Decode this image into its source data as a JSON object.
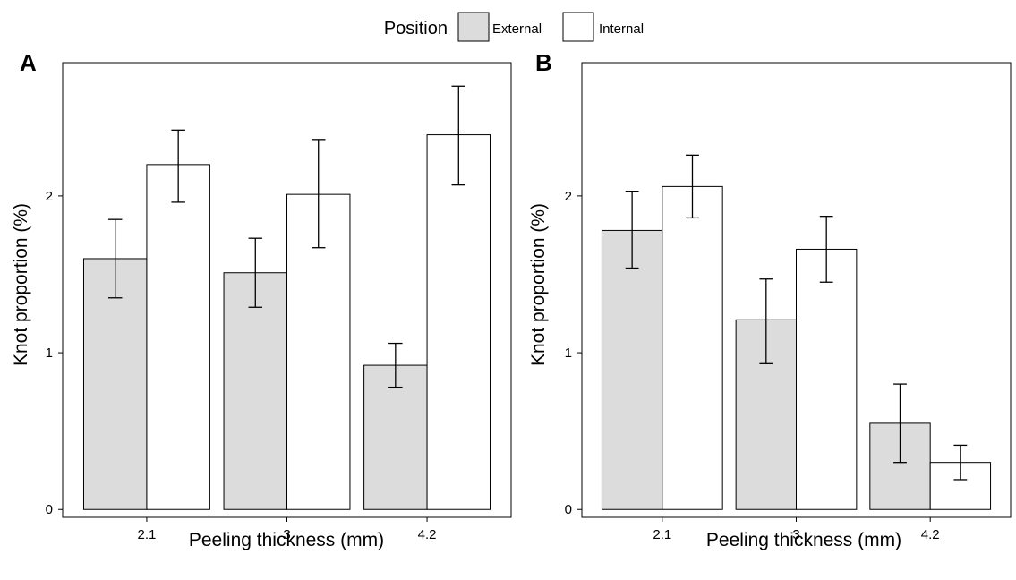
{
  "legend": {
    "title": "Position",
    "items": [
      {
        "label": "External",
        "color": "#dcdcdc"
      },
      {
        "label": "Internal",
        "color": "#ffffff"
      }
    ]
  },
  "chart_data": [
    {
      "type": "bar",
      "panel": "A",
      "categories": [
        "2.1",
        "3",
        "4.2"
      ],
      "series": [
        {
          "name": "External",
          "values": [
            1.6,
            1.51,
            0.92
          ],
          "err_low": [
            1.35,
            1.29,
            0.78
          ],
          "err_high": [
            1.85,
            1.73,
            1.06
          ]
        },
        {
          "name": "Internal",
          "values": [
            2.2,
            2.01,
            2.39
          ],
          "err_low": [
            1.96,
            1.67,
            2.07
          ],
          "err_high": [
            2.42,
            2.36,
            2.7
          ]
        }
      ],
      "xlabel": "Peeling thickness (mm)",
      "ylabel": "Knot proportion (%)",
      "ylim": [
        -0.05,
        2.85
      ],
      "yticks": [
        "0",
        "1",
        "2"
      ],
      "grid": false
    },
    {
      "type": "bar",
      "panel": "B",
      "categories": [
        "2.1",
        "3",
        "4.2"
      ],
      "series": [
        {
          "name": "External",
          "values": [
            1.78,
            1.21,
            0.55
          ],
          "err_low": [
            1.54,
            0.93,
            0.3
          ],
          "err_high": [
            2.03,
            1.47,
            0.8
          ]
        },
        {
          "name": "Internal",
          "values": [
            2.06,
            1.66,
            0.3
          ],
          "err_low": [
            1.86,
            1.45,
            0.19
          ],
          "err_high": [
            2.26,
            1.87,
            0.41
          ]
        }
      ],
      "xlabel": "Peeling thickness (mm)",
      "ylabel": "Knot proportion (%)",
      "ylim": [
        -0.05,
        2.85
      ],
      "yticks": [
        "0",
        "1",
        "2"
      ],
      "grid": false
    }
  ]
}
